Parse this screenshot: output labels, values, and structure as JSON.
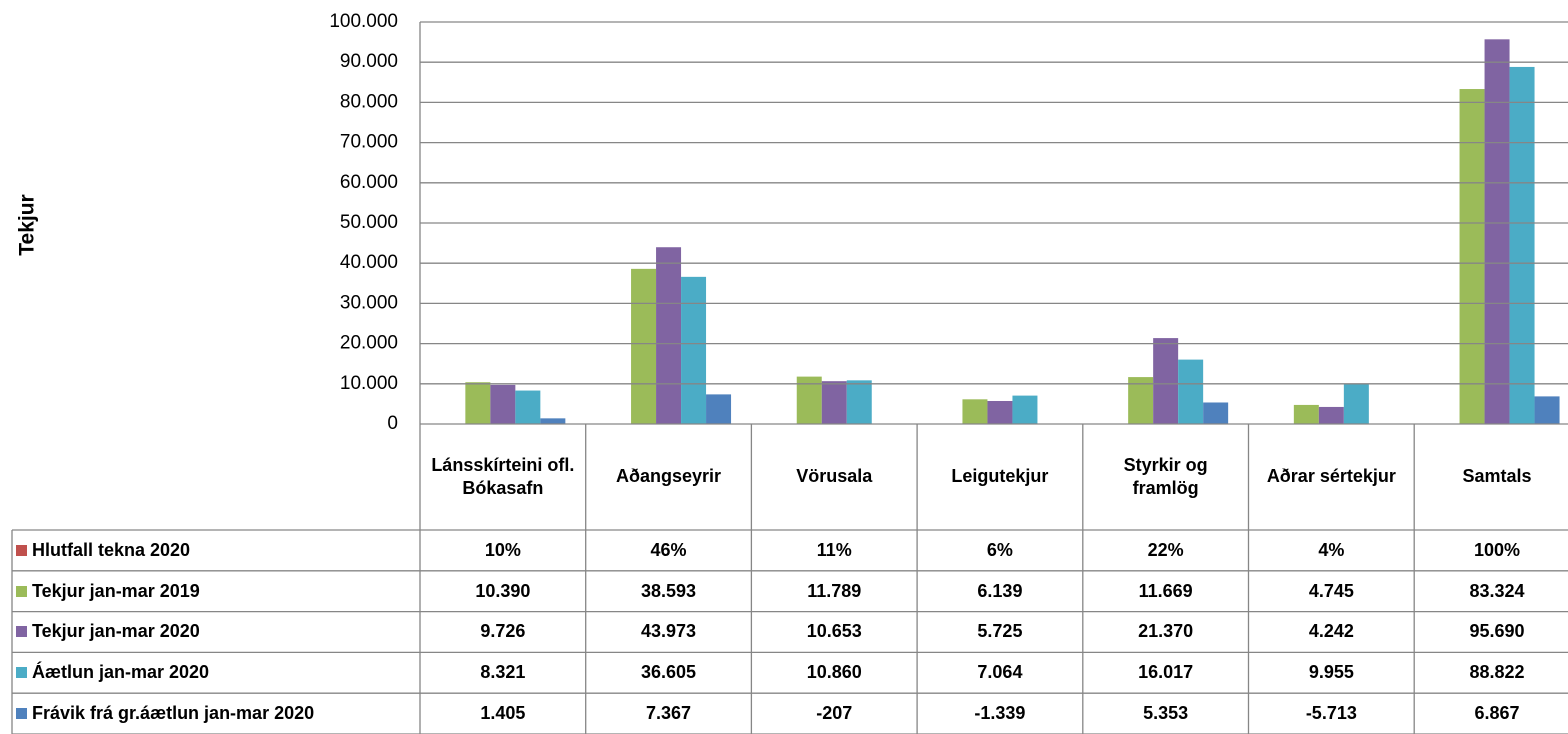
{
  "chart_data": {
    "type": "bar",
    "y_axis_label": "Tekjur",
    "categories": [
      "Lánsskírteini ofl. Bókasafn",
      "Aðangseyrir",
      "Vörusala",
      "Leigutekjur",
      "Styrkir og framlög",
      "Aðrar sértekjur",
      "Samtals"
    ],
    "series": [
      {
        "name": "Hlutfall tekna 2020",
        "color": "#c0504d",
        "values": [
          10,
          46,
          11,
          6,
          22,
          4,
          100
        ],
        "value_labels": [
          "10%",
          "46%",
          "11%",
          "6%",
          "22%",
          "4%",
          "100%"
        ]
      },
      {
        "name": "Tekjur jan-mar 2019",
        "color": "#9bbb59",
        "values": [
          10390,
          38593,
          11789,
          6139,
          11669,
          4745,
          83324
        ],
        "value_labels": [
          "10.390",
          "38.593",
          "11.789",
          "6.139",
          "11.669",
          "4.745",
          "83.324"
        ]
      },
      {
        "name": "Tekjur jan-mar 2020",
        "color": "#8064a2",
        "values": [
          9726,
          43973,
          10653,
          5725,
          21370,
          4242,
          95690
        ],
        "value_labels": [
          "9.726",
          "43.973",
          "10.653",
          "5.725",
          "21.370",
          "4.242",
          "95.690"
        ]
      },
      {
        "name": "Áætlun jan-mar 2020",
        "color": "#4bacc6",
        "values": [
          8321,
          36605,
          10860,
          7064,
          16017,
          9955,
          88822
        ],
        "value_labels": [
          "8.321",
          "36.605",
          "10.860",
          "7.064",
          "16.017",
          "9.955",
          "88.822"
        ]
      },
      {
        "name": "Frávik frá gr.áætlun jan-mar 2020",
        "color": "#4f81bd",
        "values": [
          1405,
          7367,
          -207,
          -1339,
          5353,
          -5713,
          6867
        ],
        "value_labels": [
          "1.405",
          "7.367",
          "-207",
          "-1.339",
          "5.353",
          "-5.713",
          "6.867"
        ]
      }
    ],
    "ylim": [
      0,
      100000
    ],
    "yticks": [
      0,
      {
        "value": 10000,
        "label": "10.000"
      },
      {
        "value": 20000,
        "label": "20.000"
      },
      {
        "value": 30000,
        "label": "30.000"
      },
      {
        "value": 40000,
        "label": "40.000"
      },
      {
        "value": 50000,
        "label": "50.000"
      },
      {
        "value": 60000,
        "label": "60.000"
      },
      {
        "value": 70000,
        "label": "70.000"
      },
      {
        "value": 80000,
        "label": "80.000"
      },
      {
        "value": 90000,
        "label": "90.000"
      },
      {
        "value": 100000,
        "label": "100.000"
      }
    ],
    "grid": true,
    "data_table": true
  }
}
